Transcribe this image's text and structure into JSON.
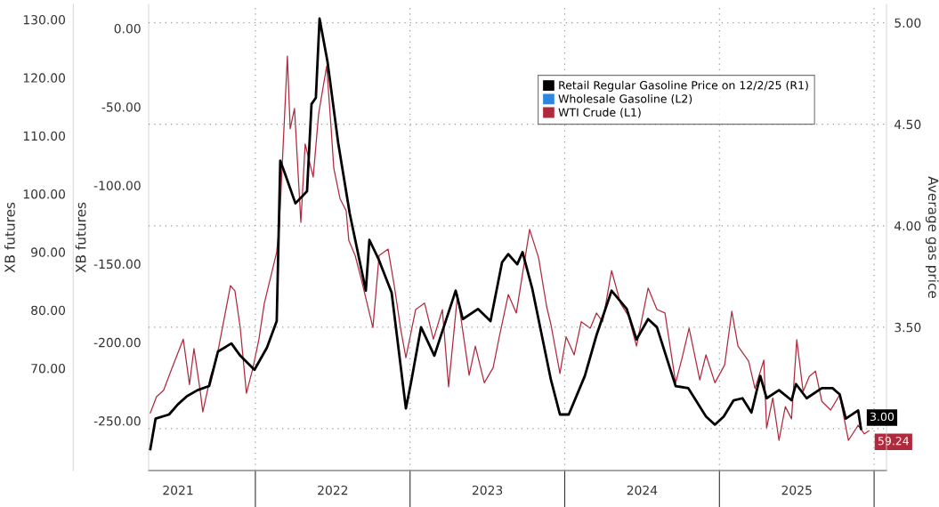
{
  "chart_data": {
    "type": "line",
    "ylabel": "XB futures",
    "y3label": "XB futures",
    "y2label": "Average gas price",
    "xlim": [
      2021.31,
      2026.08
    ],
    "xticks": [
      {
        "value": 2022,
        "label": null
      },
      {
        "value": 2023,
        "label": null
      },
      {
        "value": 2024,
        "label": null
      },
      {
        "value": 2025,
        "label": null
      },
      {
        "value": 2026,
        "label": null
      },
      {
        "value": 2021.5,
        "label": "2021"
      },
      {
        "value": 2022.5,
        "label": "2022"
      },
      {
        "value": 2023.5,
        "label": "2023"
      },
      {
        "value": 2024.5,
        "label": "2024"
      },
      {
        "value": 2025.5,
        "label": "2025"
      }
    ],
    "ylim": [
      52.4,
      132.6
    ],
    "yticks": [
      {
        "value": 70,
        "label": "70.00"
      },
      {
        "value": 80,
        "label": "80.00"
      },
      {
        "value": 90,
        "label": "90.00"
      },
      {
        "value": 100,
        "label": "100.00"
      },
      {
        "value": 110,
        "label": "110.00"
      },
      {
        "value": 120,
        "label": "120.00"
      },
      {
        "value": 130,
        "label": "130.00"
      }
    ],
    "y3lim": [
      -281.7,
      15.3
    ],
    "y3ticks": [
      {
        "value": -250,
        "label": "-250.00"
      },
      {
        "value": -200,
        "label": "-200.00"
      },
      {
        "value": -150,
        "label": "-150.00"
      },
      {
        "value": -100,
        "label": "-100.00"
      },
      {
        "value": -50,
        "label": "-50.00"
      },
      {
        "value": 0,
        "label": "0.00"
      }
    ],
    "y2lim": [
      2.794,
      5.09
    ],
    "y2ticks": [
      {
        "value": 3,
        "label": null
      },
      {
        "value": 3.5,
        "label": "3.50"
      },
      {
        "value": 4,
        "label": "4.00"
      },
      {
        "value": 4.5,
        "label": "4.50"
      },
      {
        "value": 5,
        "label": "5.00"
      }
    ],
    "grid": true,
    "legend": "top right",
    "series": [
      {
        "name": "Retail Regular Gasoline Price on 12/2/25 (R1)",
        "color": "#000000",
        "axis": "y2",
        "x": [
          2021.321,
          2021.355,
          2021.442,
          2021.499,
          2021.557,
          2021.626,
          2021.701,
          2021.758,
          2021.845,
          2021.902,
          2021.994,
          2022.075,
          2022.138,
          2022.161,
          2022.19,
          2022.259,
          2022.334,
          2022.363,
          2022.391,
          2022.415,
          2022.466,
          2022.535,
          2022.61,
          2022.714,
          2022.737,
          2022.794,
          2022.881,
          2022.973,
          2023.007,
          2023.071,
          2023.157,
          2023.295,
          2023.341,
          2023.439,
          2023.52,
          2023.595,
          2023.635,
          2023.693,
          2023.727,
          2023.79,
          2023.911,
          2023.969,
          2024.026,
          2024.13,
          2024.205,
          2024.303,
          2024.401,
          2024.464,
          2024.539,
          2024.596,
          2024.717,
          2024.798,
          2024.913,
          2024.971,
          2025.028,
          2025.092,
          2025.149,
          2025.207,
          2025.264,
          2025.305,
          2025.385,
          2025.466,
          2025.495,
          2025.564,
          2025.662,
          2025.731,
          2025.777,
          2025.817,
          2025.897,
          2025.915
        ],
        "values": [
          2.9,
          3.05,
          3.07,
          3.12,
          3.16,
          3.19,
          3.21,
          3.38,
          3.42,
          3.36,
          3.29,
          3.4,
          3.53,
          4.32,
          4.26,
          4.11,
          4.17,
          4.6,
          4.63,
          5.02,
          4.81,
          4.41,
          4.06,
          3.68,
          3.93,
          3.84,
          3.67,
          3.1,
          3.23,
          3.5,
          3.36,
          3.68,
          3.54,
          3.59,
          3.53,
          3.82,
          3.86,
          3.81,
          3.87,
          3.69,
          3.24,
          3.07,
          3.07,
          3.26,
          3.46,
          3.68,
          3.59,
          3.44,
          3.54,
          3.5,
          3.21,
          3.2,
          3.06,
          3.02,
          3.06,
          3.14,
          3.15,
          3.08,
          3.26,
          3.15,
          3.19,
          3.14,
          3.22,
          3.15,
          3.2,
          3.2,
          3.17,
          3.05,
          3.09,
          3.0
        ],
        "value_labels": [
          null,
          null,
          null,
          null,
          null,
          null,
          null,
          null,
          null,
          null,
          null,
          null,
          null,
          null,
          null,
          null,
          null,
          null,
          null,
          null,
          null,
          null,
          null,
          null,
          null,
          null,
          null,
          null,
          null,
          null,
          null,
          null,
          null,
          null,
          null,
          null,
          null,
          null,
          null,
          null,
          null,
          null,
          null,
          null,
          null,
          null,
          null,
          null,
          null,
          null,
          null,
          null,
          null,
          null,
          null,
          null,
          null,
          null,
          null,
          null,
          null,
          null,
          null,
          null,
          null,
          null,
          null,
          null,
          null,
          "3.00"
        ]
      },
      {
        "name": "Wholesale Gasoline (L2)",
        "color": "#2e86de",
        "axis": "y3"
      },
      {
        "name": "WTI Crude (L1)",
        "color": "#b02a3e",
        "axis": "y",
        "x": [
          2021.321,
          2021.361,
          2021.407,
          2021.459,
          2021.534,
          2021.574,
          2021.603,
          2021.643,
          2021.66,
          2021.712,
          2021.747,
          2021.839,
          2021.868,
          2021.902,
          2021.942,
          2021.983,
          2022.023,
          2022.058,
          2022.138,
          2022.155,
          2022.207,
          2022.225,
          2022.253,
          2022.294,
          2022.322,
          2022.374,
          2022.409,
          2022.461,
          2022.489,
          2022.507,
          2022.547,
          2022.587,
          2022.604,
          2022.645,
          2022.685,
          2022.76,
          2022.8,
          2022.858,
          2022.898,
          2022.938,
          2022.973,
          2023.036,
          2023.094,
          2023.151,
          2023.209,
          2023.249,
          2023.307,
          2023.382,
          2023.422,
          2023.48,
          2023.537,
          2023.577,
          2023.635,
          2023.687,
          2023.773,
          2023.831,
          2023.883,
          2023.911,
          2023.969,
          2024.009,
          2024.061,
          2024.107,
          2024.165,
          2024.205,
          2024.245,
          2024.303,
          2024.36,
          2024.412,
          2024.464,
          2024.539,
          2024.596,
          2024.648,
          2024.717,
          2024.758,
          2024.804,
          2024.873,
          2024.913,
          2024.971,
          2025.034,
          2025.08,
          2025.12,
          2025.189,
          2025.23,
          2025.287,
          2025.305,
          2025.345,
          2025.385,
          2025.426,
          2025.466,
          2025.5,
          2025.541,
          2025.581,
          2025.621,
          2025.662,
          2025.719,
          2025.777,
          2025.834,
          2025.897,
          2025.937,
          2025.966
        ],
        "values": [
          62.3,
          65.1,
          66.2,
          69.9,
          75.0,
          67.2,
          73.4,
          66.2,
          62.5,
          68.8,
          71.4,
          84.2,
          83.3,
          77.0,
          65.7,
          69.9,
          75.0,
          81.2,
          90.0,
          94.5,
          123.7,
          111.2,
          114.7,
          95.1,
          108.6,
          102.9,
          113.8,
          122.0,
          111.6,
          104.4,
          99.2,
          97.1,
          92.0,
          89.4,
          85.3,
          77.0,
          89.4,
          90.5,
          84.2,
          77.0,
          71.8,
          80.1,
          81.2,
          75.0,
          80.1,
          66.8,
          82.7,
          68.8,
          73.8,
          67.5,
          70.1,
          75.4,
          82.7,
          79.5,
          93.9,
          89.0,
          80.6,
          77.5,
          69.1,
          75.4,
          72.3,
          78.0,
          76.9,
          79.5,
          78.0,
          86.8,
          81.2,
          79.0,
          73.8,
          83.8,
          80.1,
          79.5,
          67.5,
          71.7,
          76.9,
          68.0,
          72.3,
          67.5,
          70.6,
          79.8,
          73.8,
          71.2,
          66.5,
          71.4,
          59.7,
          64.9,
          57.6,
          63.4,
          61.3,
          74.9,
          66.0,
          68.6,
          69.5,
          64.3,
          62.8,
          65.4,
          57.6,
          60.2,
          58.7,
          59.24
        ],
        "value_labels": [
          null,
          null,
          null,
          null,
          null,
          null,
          null,
          null,
          null,
          null,
          null,
          null,
          null,
          null,
          null,
          null,
          null,
          null,
          null,
          null,
          null,
          null,
          null,
          null,
          null,
          null,
          null,
          null,
          null,
          null,
          null,
          null,
          null,
          null,
          null,
          null,
          null,
          null,
          null,
          null,
          null,
          null,
          null,
          null,
          null,
          null,
          null,
          null,
          null,
          null,
          null,
          null,
          null,
          null,
          null,
          null,
          null,
          null,
          null,
          null,
          null,
          null,
          null,
          null,
          null,
          null,
          null,
          null,
          null,
          null,
          null,
          null,
          null,
          null,
          null,
          null,
          null,
          null,
          null,
          null,
          null,
          null,
          null,
          null,
          null,
          null,
          null,
          null,
          null,
          null,
          null,
          null,
          null,
          null,
          null,
          null,
          null,
          null,
          null,
          "59.24"
        ]
      }
    ]
  }
}
